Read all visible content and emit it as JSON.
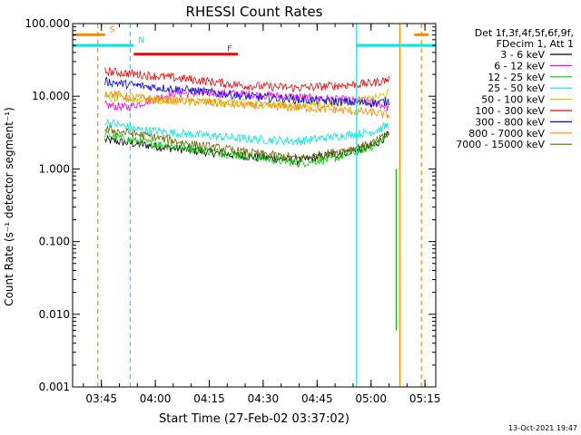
{
  "chart_data": {
    "type": "line",
    "title": "RHESSI Count Rates",
    "xlabel": "Start Time (27-Feb-02 03:37:02)",
    "ylabel": "Count Rate (s⁻¹ detector segment⁻¹)",
    "yscale": "log",
    "ylim": [
      0.001,
      100
    ],
    "xlim": [
      "03:37",
      "05:18"
    ],
    "y_ticks": [
      "0.001",
      "0.010",
      "0.100",
      "1.000",
      "10.000",
      "100.000"
    ],
    "x_ticks": [
      "03:45",
      "04:00",
      "04:15",
      "04:30",
      "04:45",
      "05:00",
      "05:15"
    ],
    "legend_header": [
      "Det 1f,3f,4f,5f,6f,9f,",
      "FDecim 1, Att 1"
    ],
    "legend_placement": "right",
    "series": [
      {
        "name": "3 - 6 keV",
        "color": "#000000",
        "x": [
          "03:46",
          "03:55",
          "04:10",
          "04:25",
          "04:40",
          "04:50",
          "05:00",
          "05:05"
        ],
        "y": [
          2.5,
          2.2,
          1.8,
          1.5,
          1.3,
          1.6,
          2.0,
          3.0
        ]
      },
      {
        "name": "6 - 12 keV",
        "color": "#ff00ff",
        "x": [
          "03:46",
          "03:52",
          "04:05",
          "04:20",
          "04:35",
          "04:50",
          "05:00",
          "05:05"
        ],
        "y": [
          7.5,
          7.0,
          11.0,
          11.0,
          10.0,
          9.0,
          8.5,
          7.0
        ]
      },
      {
        "name": "12 - 25 keV",
        "color": "#00cc00",
        "x": [
          "03:46",
          "03:55",
          "04:10",
          "04:25",
          "04:40",
          "04:50",
          "05:00",
          "05:05"
        ],
        "y": [
          3.0,
          2.4,
          1.9,
          1.5,
          1.2,
          1.4,
          2.0,
          3.0
        ]
      },
      {
        "name": "25 - 50 keV",
        "color": "#00e5e5",
        "x": [
          "03:46",
          "03:55",
          "04:10",
          "04:25",
          "04:40",
          "04:50",
          "05:00",
          "05:05"
        ],
        "y": [
          4.5,
          3.5,
          3.0,
          2.6,
          2.4,
          2.8,
          3.2,
          4.0
        ]
      },
      {
        "name": "50 - 100 keV",
        "color": "#cccc00",
        "x": [
          "03:46",
          "03:55",
          "04:10",
          "04:25",
          "04:40",
          "04:50",
          "05:00",
          "05:05"
        ],
        "y": [
          9.5,
          9.0,
          8.5,
          8.0,
          7.5,
          8.0,
          9.0,
          11.0
        ]
      },
      {
        "name": "100 - 300 keV",
        "color": "#ff0000",
        "x": [
          "03:46",
          "03:55",
          "04:10",
          "04:25",
          "04:40",
          "04:50",
          "05:00",
          "05:05"
        ],
        "y": [
          22,
          20,
          17,
          14,
          13,
          14,
          15,
          17
        ]
      },
      {
        "name": "300 - 800 keV",
        "color": "#0000ff",
        "x": [
          "03:46",
          "03:55",
          "04:10",
          "04:25",
          "04:40",
          "04:50",
          "05:00",
          "05:05"
        ],
        "y": [
          16,
          14,
          12,
          10,
          9,
          8.5,
          8,
          8.5
        ]
      },
      {
        "name": "800 - 7000 keV",
        "color": "#ff8800",
        "x": [
          "03:46",
          "03:55",
          "04:10",
          "04:25",
          "04:40",
          "04:50",
          "05:00",
          "05:05"
        ],
        "y": [
          11,
          9.5,
          8.5,
          7.5,
          7,
          6.5,
          6,
          5.5
        ]
      },
      {
        "name": "7000 - 15000 keV",
        "color": "#666600",
        "x": [
          "03:46",
          "03:55",
          "04:10",
          "04:25",
          "04:40",
          "04:50",
          "05:00",
          "05:05"
        ],
        "y": [
          3.5,
          3.0,
          2.2,
          1.7,
          1.4,
          1.7,
          2.2,
          3.0
        ]
      }
    ],
    "state_bars": [
      {
        "label": "S",
        "color": "#ff8800",
        "y": 70,
        "segments": [
          [
            "03:37",
            "03:46"
          ],
          [
            "05:12",
            "05:16"
          ]
        ]
      },
      {
        "label": "N",
        "color": "#00e5e5",
        "y": 50,
        "segments": [
          [
            "03:37",
            "03:54"
          ],
          [
            "04:56",
            "05:18"
          ]
        ]
      },
      {
        "label": "F",
        "color": "#ff0000",
        "y": 38,
        "segments": [
          [
            "03:54",
            "04:23"
          ]
        ]
      }
    ],
    "vertical_lines": [
      {
        "x": "03:44",
        "color": "#ff8800",
        "style": "dashed"
      },
      {
        "x": "03:53",
        "color": "#00e5e5",
        "style": "dashed"
      },
      {
        "x": "04:56",
        "color": "#00e5e5",
        "style": "solid"
      },
      {
        "x": "05:08",
        "color": "#ff8800",
        "style": "solid"
      },
      {
        "x": "05:14",
        "color": "#ff8800",
        "style": "dashed"
      }
    ],
    "drop_line": {
      "x": "05:07",
      "y_start": 1.0,
      "y_end": 0.006,
      "color": "#00cc00"
    },
    "footer_date": "13-Oct-2021 19:47"
  }
}
